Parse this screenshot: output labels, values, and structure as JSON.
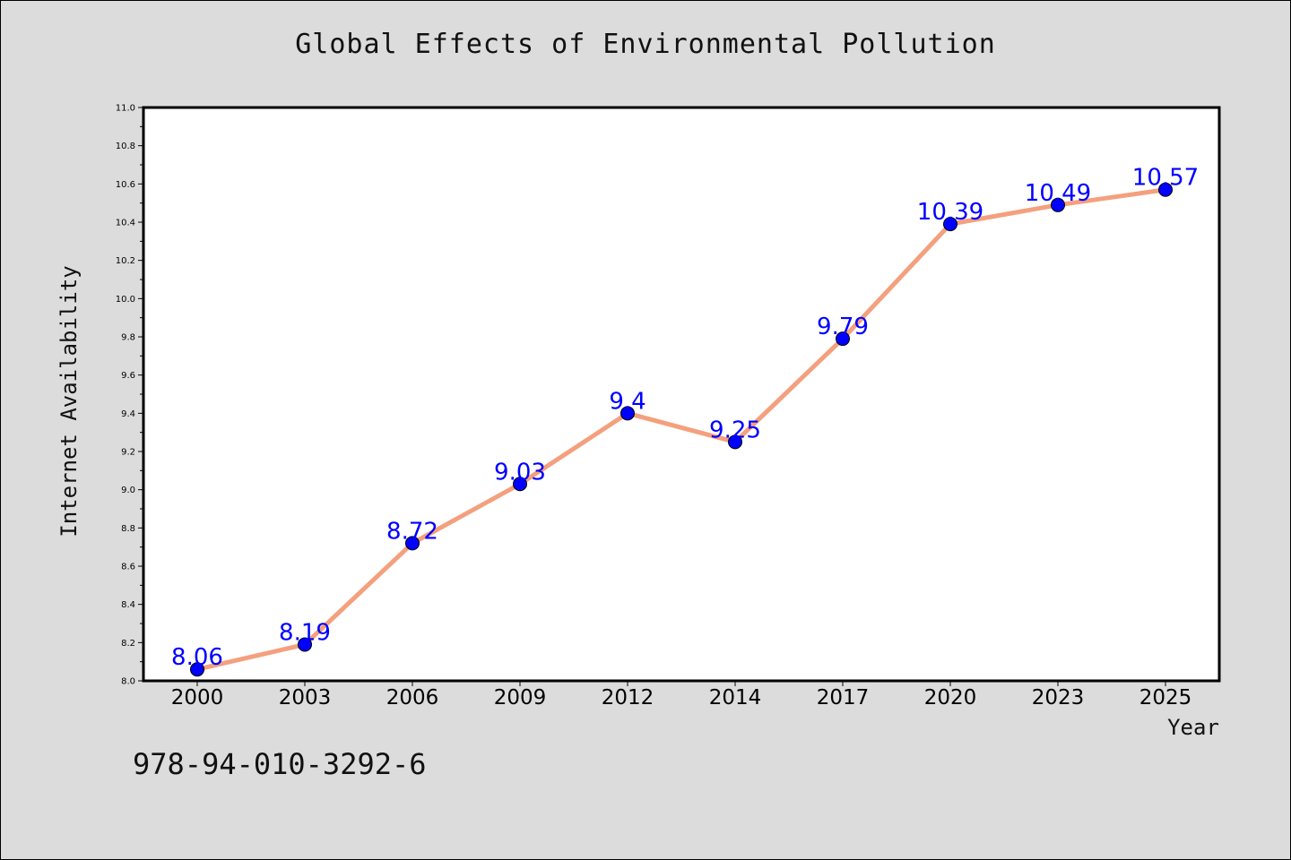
{
  "isbn_text": "978-94-010-3292-6",
  "chart_data": {
    "type": "line",
    "title": "Global Effects of Environmental Pollution",
    "xlabel": "Year",
    "ylabel": "Internet Availability",
    "categories": [
      "2000",
      "2003",
      "2006",
      "2009",
      "2012",
      "2014",
      "2017",
      "2020",
      "2023",
      "2025"
    ],
    "values": [
      8.06,
      8.19,
      8.72,
      9.03,
      9.4,
      9.25,
      9.79,
      10.39,
      10.49,
      10.57
    ],
    "data_labels": [
      "8.06",
      "8.19",
      "8.72",
      "9.03",
      "9.4",
      "9.25",
      "9.79",
      "10.39",
      "10.49",
      "10.57"
    ],
    "ylim": [
      8.0,
      11.0
    ],
    "yticks": [
      "8.0",
      "8.2",
      "8.4",
      "8.6",
      "8.8",
      "9.0",
      "9.2",
      "9.4",
      "9.6",
      "9.8",
      "10.0",
      "10.2",
      "10.4",
      "10.6",
      "10.8",
      "11.0"
    ],
    "grid": false,
    "legend": "none",
    "line_color": "#f4a07e",
    "marker_color": "#0000ff",
    "label_color": "#0000ff",
    "background": "#dcdcdc",
    "plot_background": "#ffffff"
  }
}
